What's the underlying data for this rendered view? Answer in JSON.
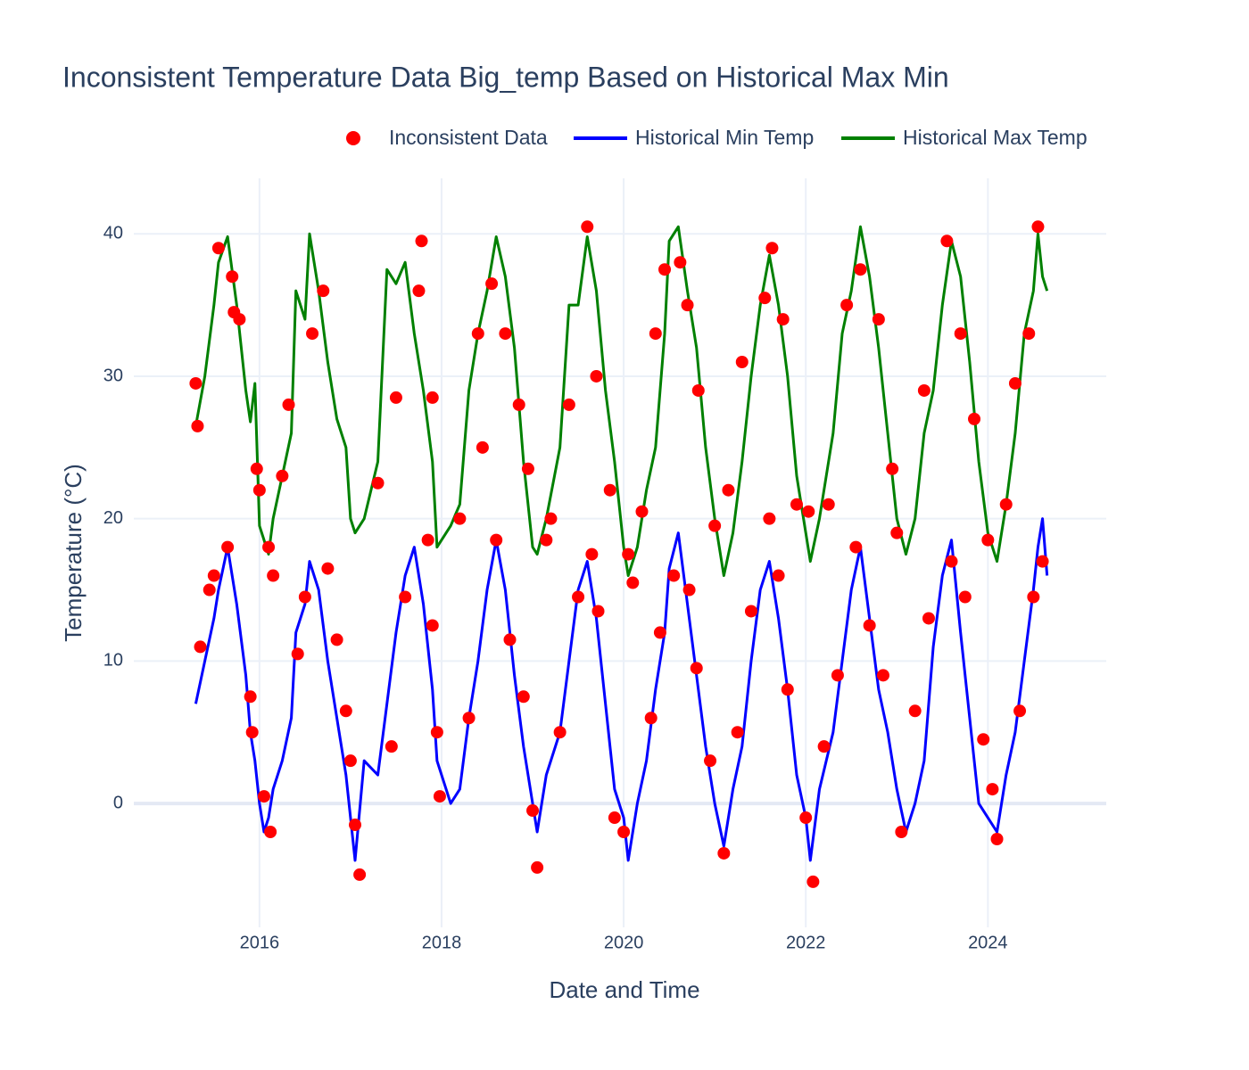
{
  "chart_data": {
    "type": "scatter",
    "title": "Inconsistent Temperature Data Big_temp Based on Historical Max Min",
    "x_label": "Date and Time",
    "y_label": "Temperature (°C)",
    "xlim": [
      2014.62,
      2025.3
    ],
    "ylim": [
      -8.7,
      43.9
    ],
    "xticks": [
      2016,
      2018,
      2020,
      2022,
      2024
    ],
    "yticks": [
      0,
      10,
      20,
      30,
      40
    ],
    "grid": true,
    "legend": "top",
    "series": [
      {
        "name": "Inconsistent Data",
        "color": "#ff0000",
        "mode": "markers",
        "x": [
          2015.3,
          2015.32,
          2015.35,
          2015.45,
          2015.5,
          2015.55,
          2015.65,
          2015.7,
          2015.72,
          2015.78,
          2015.9,
          2015.92,
          2015.97,
          2016.0,
          2016.05,
          2016.1,
          2016.12,
          2016.15,
          2016.25,
          2016.32,
          2016.42,
          2016.5,
          2016.58,
          2016.7,
          2016.75,
          2016.85,
          2016.95,
          2017.0,
          2017.05,
          2017.1,
          2017.3,
          2017.45,
          2017.5,
          2017.6,
          2017.75,
          2017.78,
          2017.85,
          2017.9,
          2017.9,
          2017.95,
          2017.98,
          2018.2,
          2018.3,
          2018.4,
          2018.45,
          2018.55,
          2018.6,
          2018.7,
          2018.75,
          2018.85,
          2018.9,
          2018.95,
          2019.0,
          2019.05,
          2019.15,
          2019.2,
          2019.3,
          2019.4,
          2019.5,
          2019.6,
          2019.65,
          2019.7,
          2019.72,
          2019.85,
          2019.9,
          2020.0,
          2020.05,
          2020.1,
          2020.2,
          2020.3,
          2020.35,
          2020.4,
          2020.45,
          2020.55,
          2020.62,
          2020.7,
          2020.72,
          2020.8,
          2020.82,
          2020.95,
          2021.0,
          2021.1,
          2021.15,
          2021.25,
          2021.3,
          2021.4,
          2021.55,
          2021.6,
          2021.63,
          2021.7,
          2021.75,
          2021.8,
          2021.9,
          2022.0,
          2022.03,
          2022.08,
          2022.2,
          2022.25,
          2022.35,
          2022.45,
          2022.55,
          2022.6,
          2022.7,
          2022.8,
          2022.85,
          2022.95,
          2023.0,
          2023.05,
          2023.2,
          2023.3,
          2023.35,
          2023.55,
          2023.6,
          2023.7,
          2023.75,
          2023.85,
          2023.95,
          2024.0,
          2024.05,
          2024.1,
          2024.2,
          2024.3,
          2024.35,
          2024.45,
          2024.5,
          2024.55,
          2024.6
        ],
        "values": [
          29.5,
          26.5,
          11,
          15,
          16,
          39,
          18,
          37,
          34.5,
          34,
          7.5,
          5,
          23.5,
          22,
          0.5,
          18,
          -2,
          16,
          23,
          28,
          10.5,
          14.5,
          33,
          36,
          16.5,
          11.5,
          6.5,
          3,
          -1.5,
          -5,
          22.5,
          4,
          28.5,
          14.5,
          36,
          39.5,
          18.5,
          12.5,
          28.5,
          5,
          0.5,
          20,
          6,
          33,
          25,
          36.5,
          18.5,
          33,
          11.5,
          28,
          7.5,
          23.5,
          -0.5,
          -4.5,
          18.5,
          20,
          5,
          28,
          14.5,
          40.5,
          17.5,
          30,
          13.5,
          22,
          -1,
          -2,
          17.5,
          15.5,
          20.5,
          6,
          33,
          12,
          37.5,
          16,
          38,
          35,
          15,
          9.5,
          29,
          3,
          19.5,
          -3.5,
          22,
          5,
          31,
          13.5,
          35.5,
          20,
          39,
          16,
          34,
          8,
          21,
          -1,
          20.5,
          -5.5,
          4,
          21,
          9,
          35,
          18,
          37.5,
          12.5,
          34,
          9,
          23.5,
          19,
          -2,
          6.5,
          29,
          13,
          39.5,
          17,
          33,
          14.5,
          27,
          4.5,
          18.5,
          1,
          -2.5,
          21,
          29.5,
          6.5,
          33,
          14.5,
          40.5,
          17
        ]
      },
      {
        "name": "Historical Min Temp",
        "color": "#0000ff",
        "mode": "lines",
        "x": [
          2015.3,
          2015.4,
          2015.5,
          2015.55,
          2015.65,
          2015.75,
          2015.85,
          2015.9,
          2015.95,
          2016.0,
          2016.05,
          2016.1,
          2016.15,
          2016.25,
          2016.35,
          2016.4,
          2016.5,
          2016.55,
          2016.65,
          2016.75,
          2016.85,
          2016.95,
          2017.0,
          2017.05,
          2017.15,
          2017.3,
          2017.4,
          2017.5,
          2017.6,
          2017.7,
          2017.8,
          2017.9,
          2017.95,
          2018.1,
          2018.2,
          2018.3,
          2018.4,
          2018.5,
          2018.6,
          2018.7,
          2018.8,
          2018.9,
          2019.0,
          2019.05,
          2019.15,
          2019.3,
          2019.4,
          2019.5,
          2019.6,
          2019.7,
          2019.8,
          2019.9,
          2020.0,
          2020.05,
          2020.15,
          2020.25,
          2020.35,
          2020.45,
          2020.5,
          2020.6,
          2020.7,
          2020.8,
          2020.9,
          2021.0,
          2021.1,
          2021.2,
          2021.3,
          2021.4,
          2021.5,
          2021.6,
          2021.7,
          2021.8,
          2021.9,
          2022.0,
          2022.05,
          2022.15,
          2022.3,
          2022.4,
          2022.5,
          2022.6,
          2022.7,
          2022.8,
          2022.9,
          2023.0,
          2023.1,
          2023.2,
          2023.3,
          2023.4,
          2023.5,
          2023.6,
          2023.7,
          2023.8,
          2023.9,
          2024.0,
          2024.1,
          2024.2,
          2024.3,
          2024.4,
          2024.5,
          2024.55,
          2024.6,
          2024.65
        ],
        "values": [
          7,
          10,
          13,
          15,
          18,
          14,
          9,
          5,
          3,
          0,
          -2,
          -1,
          1,
          3,
          6,
          12,
          14,
          17,
          15,
          10,
          6,
          2,
          -1,
          -4,
          3,
          2,
          7,
          12,
          16,
          18,
          14,
          8,
          3,
          0,
          1,
          6,
          10,
          15,
          18.5,
          15,
          9,
          4,
          0,
          -2,
          2,
          5,
          10,
          15,
          17,
          13,
          7,
          1,
          -1,
          -4,
          0,
          3,
          8,
          12,
          16.5,
          19,
          14,
          9,
          4,
          0,
          -3,
          1,
          4,
          10,
          15,
          17,
          13,
          8,
          2,
          -1,
          -4,
          1,
          5,
          10,
          15,
          18,
          13,
          8,
          5,
          1,
          -2,
          0,
          3,
          11,
          16,
          18.5,
          12,
          6,
          0,
          -1,
          -2,
          2,
          5,
          10,
          15,
          18,
          20,
          16
        ]
      },
      {
        "name": "Historical Max Temp",
        "color": "#008000",
        "mode": "lines",
        "x": [
          2015.3,
          2015.4,
          2015.5,
          2015.55,
          2015.65,
          2015.75,
          2015.85,
          2015.9,
          2015.95,
          2016.0,
          2016.05,
          2016.1,
          2016.15,
          2016.25,
          2016.35,
          2016.4,
          2016.5,
          2016.55,
          2016.65,
          2016.75,
          2016.85,
          2016.95,
          2017.0,
          2017.05,
          2017.15,
          2017.3,
          2017.4,
          2017.5,
          2017.6,
          2017.7,
          2017.8,
          2017.9,
          2017.95,
          2018.1,
          2018.2,
          2018.3,
          2018.4,
          2018.5,
          2018.6,
          2018.7,
          2018.8,
          2018.9,
          2019.0,
          2019.05,
          2019.15,
          2019.3,
          2019.4,
          2019.5,
          2019.6,
          2019.7,
          2019.8,
          2019.9,
          2020.0,
          2020.05,
          2020.15,
          2020.25,
          2020.35,
          2020.45,
          2020.5,
          2020.6,
          2020.7,
          2020.8,
          2020.9,
          2021.0,
          2021.1,
          2021.2,
          2021.3,
          2021.4,
          2021.5,
          2021.6,
          2021.7,
          2021.8,
          2021.9,
          2022.0,
          2022.05,
          2022.15,
          2022.3,
          2022.4,
          2022.5,
          2022.6,
          2022.7,
          2022.8,
          2022.9,
          2023.0,
          2023.1,
          2023.2,
          2023.3,
          2023.4,
          2023.5,
          2023.6,
          2023.7,
          2023.8,
          2023.9,
          2024.0,
          2024.1,
          2024.2,
          2024.3,
          2024.4,
          2024.5,
          2024.55,
          2024.6,
          2024.65
        ],
        "values": [
          26.5,
          30,
          35,
          38,
          39.8,
          35,
          29,
          26.8,
          29.5,
          19.5,
          18.5,
          17.5,
          20,
          23,
          26,
          36,
          34,
          40,
          36,
          31,
          27,
          25,
          20,
          19,
          20,
          24,
          37.5,
          36.5,
          38,
          33,
          29,
          24,
          18,
          19.5,
          21,
          29,
          33,
          36,
          39.8,
          37,
          32,
          24,
          18,
          17.5,
          20,
          25,
          35,
          35,
          39.8,
          36,
          29,
          24,
          18,
          16,
          18,
          22,
          25,
          33,
          39.5,
          40.5,
          36,
          32,
          25,
          20,
          16,
          19,
          24,
          30,
          35,
          38.5,
          35,
          30,
          23,
          19,
          17,
          20,
          26,
          33,
          36,
          40.5,
          37,
          32,
          26,
          20,
          17.5,
          20,
          26,
          29,
          35,
          39.5,
          37,
          31,
          24,
          19,
          17,
          21,
          26,
          33,
          36,
          40,
          37,
          36
        ]
      }
    ]
  }
}
